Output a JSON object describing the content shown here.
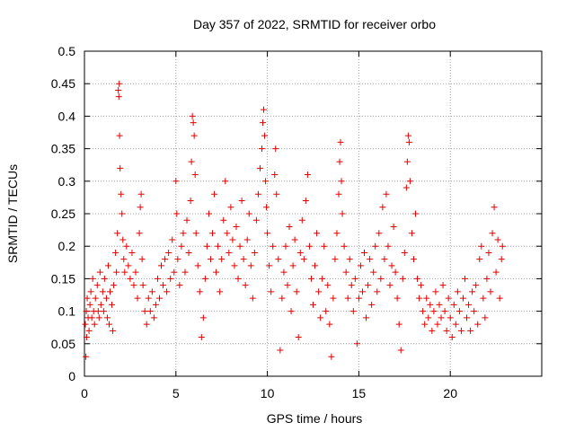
{
  "chart_data": {
    "type": "scatter",
    "title": "Day 357 of 2022, SRMTID for receiver orbo",
    "xlabel": "GPS time / hours",
    "ylabel": "SRMTID / TECUs",
    "xlim": [
      0,
      25
    ],
    "ylim": [
      0,
      0.5
    ],
    "xticks": [
      0,
      5,
      10,
      15,
      20
    ],
    "xtick_labels": [
      "0",
      "5",
      "10",
      "15",
      "20"
    ],
    "yticks": [
      0,
      0.05,
      0.1,
      0.15,
      0.2,
      0.25,
      0.3,
      0.35,
      0.4,
      0.45,
      0.5
    ],
    "ytick_labels": [
      "0",
      "0.05",
      "0.1",
      "0.15",
      "0.2",
      "0.25",
      "0.3",
      "0.35",
      "0.4",
      "0.45",
      "0.5"
    ],
    "grid": true,
    "marker": "+",
    "color": "#e60000",
    "series": [
      {
        "name": "SRMTID",
        "points": [
          [
            0.05,
            0.08
          ],
          [
            0.08,
            0.03
          ],
          [
            0.1,
            0.1
          ],
          [
            0.12,
            0.06
          ],
          [
            0.15,
            0.12
          ],
          [
            0.2,
            0.09
          ],
          [
            0.25,
            0.07
          ],
          [
            0.3,
            0.11
          ],
          [
            0.35,
            0.13
          ],
          [
            0.4,
            0.09
          ],
          [
            0.45,
            0.15
          ],
          [
            0.5,
            0.1
          ],
          [
            0.55,
            0.08
          ],
          [
            0.6,
            0.12
          ],
          [
            0.7,
            0.14
          ],
          [
            0.75,
            0.1
          ],
          [
            0.8,
            0.09
          ],
          [
            0.85,
            0.16
          ],
          [
            0.9,
            0.11
          ],
          [
            1.0,
            0.13
          ],
          [
            1.05,
            0.1
          ],
          [
            1.1,
            0.15
          ],
          [
            1.2,
            0.12
          ],
          [
            1.25,
            0.09
          ],
          [
            1.3,
            0.17
          ],
          [
            1.35,
            0.08
          ],
          [
            1.4,
            0.13
          ],
          [
            1.5,
            0.11
          ],
          [
            1.55,
            0.07
          ],
          [
            1.6,
            0.14
          ],
          [
            1.7,
            0.19
          ],
          [
            1.75,
            0.16
          ],
          [
            1.8,
            0.22
          ],
          [
            1.85,
            0.44
          ],
          [
            1.88,
            0.43
          ],
          [
            1.9,
            0.45
          ],
          [
            1.92,
            0.37
          ],
          [
            1.95,
            0.32
          ],
          [
            2.0,
            0.28
          ],
          [
            2.05,
            0.25
          ],
          [
            2.1,
            0.21
          ],
          [
            2.15,
            0.18
          ],
          [
            2.2,
            0.16
          ],
          [
            2.3,
            0.2
          ],
          [
            2.4,
            0.17
          ],
          [
            2.5,
            0.15
          ],
          [
            2.6,
            0.19
          ],
          [
            2.7,
            0.14
          ],
          [
            2.8,
            0.16
          ],
          [
            2.9,
            0.12
          ],
          [
            3.0,
            0.22
          ],
          [
            3.05,
            0.26
          ],
          [
            3.1,
            0.28
          ],
          [
            3.15,
            0.18
          ],
          [
            3.2,
            0.14
          ],
          [
            3.3,
            0.1
          ],
          [
            3.4,
            0.08
          ],
          [
            3.5,
            0.12
          ],
          [
            3.6,
            0.1
          ],
          [
            3.7,
            0.13
          ],
          [
            3.8,
            0.09
          ],
          [
            3.9,
            0.11
          ],
          [
            4.0,
            0.15
          ],
          [
            4.1,
            0.12
          ],
          [
            4.2,
            0.17
          ],
          [
            4.3,
            0.14
          ],
          [
            4.4,
            0.18
          ],
          [
            4.5,
            0.13
          ],
          [
            4.6,
            0.19
          ],
          [
            4.7,
            0.15
          ],
          [
            4.8,
            0.21
          ],
          [
            4.9,
            0.16
          ],
          [
            5.0,
            0.3
          ],
          [
            5.05,
            0.25
          ],
          [
            5.1,
            0.18
          ],
          [
            5.2,
            0.14
          ],
          [
            5.3,
            0.2
          ],
          [
            5.4,
            0.22
          ],
          [
            5.5,
            0.16
          ],
          [
            5.6,
            0.24
          ],
          [
            5.7,
            0.19
          ],
          [
            5.8,
            0.27
          ],
          [
            5.85,
            0.33
          ],
          [
            5.9,
            0.4
          ],
          [
            5.95,
            0.39
          ],
          [
            6.0,
            0.37
          ],
          [
            6.05,
            0.31
          ],
          [
            6.1,
            0.22
          ],
          [
            6.2,
            0.17
          ],
          [
            6.3,
            0.13
          ],
          [
            6.4,
            0.06
          ],
          [
            6.5,
            0.09
          ],
          [
            6.6,
            0.15
          ],
          [
            6.7,
            0.2
          ],
          [
            6.8,
            0.25
          ],
          [
            6.9,
            0.18
          ],
          [
            7.0,
            0.22
          ],
          [
            7.1,
            0.28
          ],
          [
            7.2,
            0.16
          ],
          [
            7.3,
            0.2
          ],
          [
            7.4,
            0.13
          ],
          [
            7.5,
            0.18
          ],
          [
            7.6,
            0.24
          ],
          [
            7.7,
            0.3
          ],
          [
            7.8,
            0.22
          ],
          [
            7.9,
            0.19
          ],
          [
            8.0,
            0.26
          ],
          [
            8.1,
            0.21
          ],
          [
            8.2,
            0.17
          ],
          [
            8.3,
            0.23
          ],
          [
            8.4,
            0.15
          ],
          [
            8.5,
            0.2
          ],
          [
            8.6,
            0.27
          ],
          [
            8.7,
            0.18
          ],
          [
            8.8,
            0.14
          ],
          [
            8.9,
            0.21
          ],
          [
            9.0,
            0.25
          ],
          [
            9.1,
            0.17
          ],
          [
            9.2,
            0.12
          ],
          [
            9.3,
            0.19
          ],
          [
            9.4,
            0.24
          ],
          [
            9.5,
            0.28
          ],
          [
            9.6,
            0.32
          ],
          [
            9.7,
            0.35
          ],
          [
            9.75,
            0.39
          ],
          [
            9.8,
            0.41
          ],
          [
            9.85,
            0.37
          ],
          [
            9.9,
            0.3
          ],
          [
            9.95,
            0.26
          ],
          [
            10.0,
            0.22
          ],
          [
            10.1,
            0.17
          ],
          [
            10.2,
            0.13
          ],
          [
            10.3,
            0.2
          ],
          [
            10.4,
            0.31
          ],
          [
            10.45,
            0.35
          ],
          [
            10.5,
            0.28
          ],
          [
            10.6,
            0.18
          ],
          [
            10.7,
            0.04
          ],
          [
            10.8,
            0.12
          ],
          [
            10.9,
            0.16
          ],
          [
            11.0,
            0.2
          ],
          [
            11.1,
            0.14
          ],
          [
            11.2,
            0.23
          ],
          [
            11.3,
            0.1
          ],
          [
            11.4,
            0.17
          ],
          [
            11.5,
            0.21
          ],
          [
            11.6,
            0.13
          ],
          [
            11.7,
            0.06
          ],
          [
            11.8,
            0.19
          ],
          [
            11.9,
            0.24
          ],
          [
            12.0,
            0.18
          ],
          [
            12.1,
            0.27
          ],
          [
            12.2,
            0.31
          ],
          [
            12.3,
            0.2
          ],
          [
            12.4,
            0.15
          ],
          [
            12.5,
            0.11
          ],
          [
            12.6,
            0.17
          ],
          [
            12.7,
            0.22
          ],
          [
            12.8,
            0.13
          ],
          [
            12.9,
            0.09
          ],
          [
            13.0,
            0.15
          ],
          [
            13.1,
            0.2
          ],
          [
            13.2,
            0.1
          ],
          [
            13.3,
            0.14
          ],
          [
            13.4,
            0.08
          ],
          [
            13.5,
            0.03
          ],
          [
            13.6,
            0.12
          ],
          [
            13.7,
            0.18
          ],
          [
            13.8,
            0.22
          ],
          [
            13.9,
            0.28
          ],
          [
            13.95,
            0.33
          ],
          [
            14.0,
            0.36
          ],
          [
            14.05,
            0.3
          ],
          [
            14.1,
            0.25
          ],
          [
            14.2,
            0.2
          ],
          [
            14.3,
            0.16
          ],
          [
            14.4,
            0.12
          ],
          [
            14.5,
            0.18
          ],
          [
            14.6,
            0.14
          ],
          [
            14.7,
            0.1
          ],
          [
            14.8,
            0.15
          ],
          [
            14.9,
            0.05
          ],
          [
            15.0,
            0.12
          ],
          [
            15.1,
            0.17
          ],
          [
            15.2,
            0.13
          ],
          [
            15.3,
            0.19
          ],
          [
            15.4,
            0.09
          ],
          [
            15.5,
            0.14
          ],
          [
            15.6,
            0.18
          ],
          [
            15.7,
            0.11
          ],
          [
            15.8,
            0.16
          ],
          [
            15.9,
            0.2
          ],
          [
            16.0,
            0.13
          ],
          [
            16.1,
            0.22
          ],
          [
            16.2,
            0.15
          ],
          [
            16.3,
            0.26
          ],
          [
            16.4,
            0.18
          ],
          [
            16.5,
            0.28
          ],
          [
            16.6,
            0.2
          ],
          [
            16.7,
            0.14
          ],
          [
            16.8,
            0.17
          ],
          [
            16.9,
            0.23
          ],
          [
            17.0,
            0.16
          ],
          [
            17.1,
            0.12
          ],
          [
            17.2,
            0.08
          ],
          [
            17.3,
            0.04
          ],
          [
            17.4,
            0.15
          ],
          [
            17.5,
            0.19
          ],
          [
            17.6,
            0.29
          ],
          [
            17.65,
            0.33
          ],
          [
            17.7,
            0.37
          ],
          [
            17.75,
            0.36
          ],
          [
            17.8,
            0.3
          ],
          [
            17.9,
            0.22
          ],
          [
            18.0,
            0.18
          ],
          [
            18.1,
            0.25
          ],
          [
            18.2,
            0.15
          ],
          [
            18.3,
            0.12
          ],
          [
            18.4,
            0.14
          ],
          [
            18.5,
            0.1
          ],
          [
            18.6,
            0.08
          ],
          [
            18.7,
            0.12
          ],
          [
            18.8,
            0.09
          ],
          [
            18.9,
            0.11
          ],
          [
            19.0,
            0.07
          ],
          [
            19.1,
            0.1
          ],
          [
            19.2,
            0.13
          ],
          [
            19.3,
            0.08
          ],
          [
            19.4,
            0.11
          ],
          [
            19.5,
            0.09
          ],
          [
            19.6,
            0.14
          ],
          [
            19.7,
            0.1
          ],
          [
            19.8,
            0.07
          ],
          [
            19.9,
            0.12
          ],
          [
            20.0,
            0.09
          ],
          [
            20.1,
            0.06
          ],
          [
            20.2,
            0.11
          ],
          [
            20.3,
            0.08
          ],
          [
            20.4,
            0.13
          ],
          [
            20.5,
            0.1
          ],
          [
            20.6,
            0.07
          ],
          [
            20.7,
            0.12
          ],
          [
            20.8,
            0.15
          ],
          [
            20.9,
            0.09
          ],
          [
            21.0,
            0.11
          ],
          [
            21.1,
            0.07
          ],
          [
            21.2,
            0.13
          ],
          [
            21.3,
            0.1
          ],
          [
            21.4,
            0.14
          ],
          [
            21.5,
            0.08
          ],
          [
            21.6,
            0.18
          ],
          [
            21.7,
            0.2
          ],
          [
            21.8,
            0.12
          ],
          [
            21.9,
            0.09
          ],
          [
            22.0,
            0.15
          ],
          [
            22.1,
            0.19
          ],
          [
            22.2,
            0.13
          ],
          [
            22.3,
            0.22
          ],
          [
            22.4,
            0.26
          ],
          [
            22.5,
            0.16
          ],
          [
            22.6,
            0.21
          ],
          [
            22.7,
            0.12
          ],
          [
            22.8,
            0.18
          ],
          [
            22.85,
            0.2
          ]
        ]
      }
    ]
  }
}
